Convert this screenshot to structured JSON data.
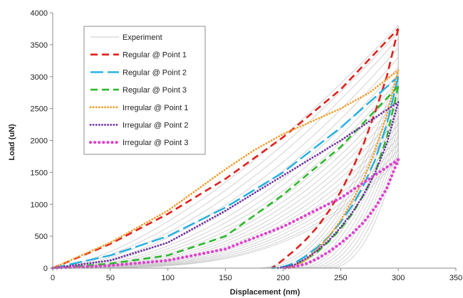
{
  "chart_data": {
    "type": "line",
    "title": "",
    "xlabel": "Displacement (nm)",
    "ylabel": "Load (uN)",
    "xlim": [
      0,
      350
    ],
    "ylim": [
      0,
      4000
    ],
    "xticks": [
      0,
      50,
      100,
      150,
      200,
      250,
      300,
      350
    ],
    "yticks": [
      0,
      500,
      1000,
      1500,
      2000,
      2500,
      3000,
      3500,
      4000
    ],
    "xtick_labels": [
      "0",
      "50",
      "100",
      "150",
      "200",
      "250",
      "300",
      "350"
    ],
    "ytick_labels": [
      "0",
      "500",
      "1000",
      "1500",
      "2000",
      "2500",
      "3000",
      "3500",
      "4000"
    ],
    "grid": false,
    "legend_position": "top-left",
    "colors": {
      "experiment": "#c8c8c8",
      "reg1": "#e0201b",
      "reg2": "#1fb0e0",
      "reg3": "#2db82d",
      "irr1": "#f0a030",
      "irr2": "#7030a0",
      "irr3": "#e040d0"
    },
    "experiment_loading_peaks": [
      3800,
      3700,
      3600,
      3450,
      3300,
      3150,
      3050,
      2950,
      2850,
      2750,
      2650,
      2550,
      2450,
      2350,
      2250,
      2150,
      2050,
      1950,
      1850,
      1750,
      1700
    ],
    "experiment_loading_exponents": [
      1.5,
      1.6,
      1.7,
      1.8,
      1.9,
      2.0,
      2.1,
      2.2,
      2.3,
      2.4,
      2.5,
      2.6,
      2.7,
      2.8,
      2.9,
      3.0,
      3.1,
      3.2,
      3.3,
      3.4,
      3.5
    ],
    "experiment_unloading": [
      {
        "residual": 175,
        "peak": 3100
      },
      {
        "residual": 180,
        "peak": 3000
      },
      {
        "residual": 185,
        "peak": 2900
      },
      {
        "residual": 190,
        "peak": 2800
      },
      {
        "residual": 195,
        "peak": 2700
      },
      {
        "residual": 200,
        "peak": 2600
      },
      {
        "residual": 205,
        "peak": 2500
      },
      {
        "residual": 210,
        "peak": 2400
      },
      {
        "residual": 215,
        "peak": 2300
      },
      {
        "residual": 220,
        "peak": 2200
      },
      {
        "residual": 225,
        "peak": 2100
      },
      {
        "residual": 230,
        "peak": 2000
      },
      {
        "residual": 235,
        "peak": 1900
      },
      {
        "residual": 240,
        "peak": 1800
      }
    ],
    "series": [
      {
        "name": "Experiment",
        "style": "solid"
      },
      {
        "name": "Regular @ Point 1",
        "style": "dash",
        "loading": {
          "x": [
            0,
            50,
            100,
            150,
            200,
            250,
            300
          ],
          "y": [
            0,
            380,
            850,
            1400,
            2050,
            2800,
            3750
          ]
        },
        "unloading": {
          "x": [
            300,
            290,
            280,
            270,
            260,
            250,
            240,
            230,
            220,
            210,
            200,
            195,
            190
          ],
          "y": [
            3750,
            3000,
            2450,
            1950,
            1550,
            1200,
            900,
            650,
            450,
            280,
            130,
            60,
            0
          ]
        }
      },
      {
        "name": "Regular @ Point 2",
        "style": "longdash",
        "loading": {
          "x": [
            0,
            50,
            100,
            150,
            200,
            250,
            300
          ],
          "y": [
            0,
            200,
            500,
            950,
            1500,
            2200,
            3000
          ]
        },
        "unloading": {
          "x": [
            300,
            290,
            280,
            270,
            260,
            250,
            240,
            230,
            220,
            210,
            200,
            190
          ],
          "y": [
            3000,
            2250,
            1700,
            1300,
            980,
            720,
            500,
            330,
            190,
            80,
            20,
            0
          ]
        }
      },
      {
        "name": "Regular @ Point 3",
        "style": "dash",
        "loading": {
          "x": [
            0,
            50,
            100,
            150,
            200,
            250,
            300
          ],
          "y": [
            0,
            70,
            200,
            500,
            1150,
            1900,
            2850
          ]
        },
        "unloading": {
          "x": [
            300,
            290,
            280,
            270,
            260,
            250,
            240,
            230,
            220,
            210,
            200
          ],
          "y": [
            2850,
            2050,
            1500,
            1150,
            850,
            620,
            420,
            260,
            140,
            50,
            0
          ]
        }
      },
      {
        "name": "Irregular @ Point 1",
        "style": "dot",
        "loading": {
          "x": [
            0,
            50,
            100,
            150,
            175,
            200,
            225,
            250,
            275,
            300
          ],
          "y": [
            0,
            400,
            900,
            1550,
            1850,
            2100,
            2300,
            2500,
            2750,
            3100
          ]
        },
        "unloading": {
          "x": [
            300,
            290,
            280,
            270,
            260,
            250,
            240,
            230,
            220,
            210,
            205
          ],
          "y": [
            3100,
            2400,
            1850,
            1400,
            1050,
            750,
            500,
            300,
            130,
            30,
            0
          ]
        }
      },
      {
        "name": "Irregular @ Point 2",
        "style": "dot",
        "loading": {
          "x": [
            0,
            50,
            100,
            150,
            200,
            250,
            300
          ],
          "y": [
            0,
            120,
            400,
            900,
            1450,
            2000,
            2600
          ]
        },
        "unloading": {
          "x": [
            300,
            290,
            280,
            270,
            260,
            250,
            240,
            230,
            220,
            210,
            200,
            195
          ],
          "y": [
            2600,
            1950,
            1500,
            1150,
            870,
            640,
            440,
            280,
            150,
            55,
            10,
            0
          ]
        }
      },
      {
        "name": "Irregular @ Point 3",
        "style": "bigdot",
        "loading": {
          "x": [
            0,
            50,
            100,
            150,
            200,
            250,
            300
          ],
          "y": [
            0,
            40,
            120,
            300,
            650,
            1100,
            1700
          ]
        },
        "unloading": {
          "x": [
            300,
            290,
            280,
            270,
            260,
            250,
            240,
            230,
            220,
            210,
            200
          ],
          "y": [
            1700,
            1250,
            950,
            720,
            540,
            390,
            260,
            150,
            70,
            20,
            0
          ]
        }
      }
    ]
  }
}
